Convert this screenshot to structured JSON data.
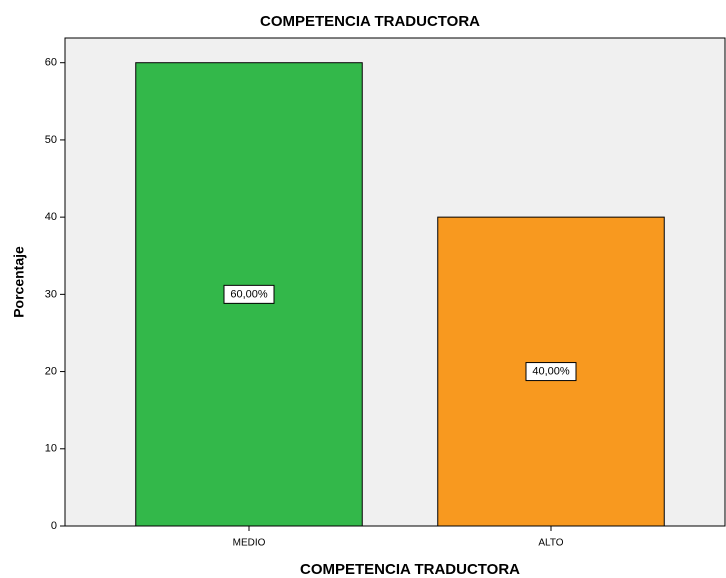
{
  "chart_data": {
    "type": "bar",
    "title": "COMPETENCIA TRADUCTORA",
    "x_label": "COMPETENCIA TRADUCTORA",
    "y_label": "Porcentaje",
    "categories": [
      "MEDIO",
      "ALTO"
    ],
    "values": [
      60,
      40
    ],
    "value_labels": [
      "60,00%",
      "40,00%"
    ],
    "colors": [
      "#33b84a",
      "#f8991f"
    ],
    "ylim": [
      0,
      63.2
    ],
    "yticks": [
      0,
      10,
      20,
      30,
      40,
      50,
      60
    ],
    "grid": false
  }
}
